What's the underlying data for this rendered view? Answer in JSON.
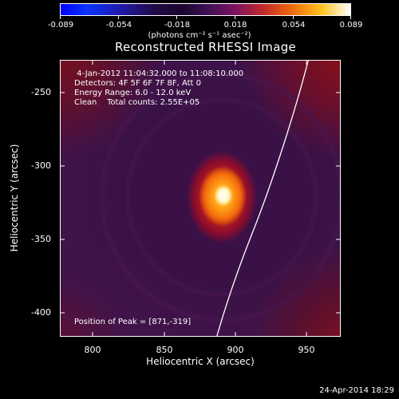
{
  "colorbar": {
    "tick_labels": [
      "-0.089",
      "-0.054",
      "-0.018",
      "0.018",
      "0.054",
      "0.089"
    ],
    "units": "(photons cm⁻² s⁻¹ asec⁻²)",
    "range": [
      -0.089,
      0.089
    ]
  },
  "title": "Reconstructed RHESSI Image",
  "info": {
    "time": " 4-Jan-2012 11:04:32.000 to 11:08:10.000",
    "detectors": "Detectors: 4F 5F 6F 7F 8F, Att 0",
    "energy": "Energy Range: 6.0 - 12.0 keV",
    "clean": "Clean    Total counts: 2.55E+05"
  },
  "peak_label": "Position of Peak = [871,-319]",
  "axes": {
    "xlabel": "Heliocentric X (arcsec)",
    "ylabel": "Heliocentric Y (arcsec)",
    "x_ticks": [
      "800",
      "850",
      "900",
      "950"
    ],
    "y_ticks": [
      "-250",
      "-300",
      "-350",
      "-400"
    ],
    "x_range": [
      778,
      968
    ],
    "y_range": [
      -420,
      -232
    ]
  },
  "timestamp": "24-Apr-2014 18:29"
}
